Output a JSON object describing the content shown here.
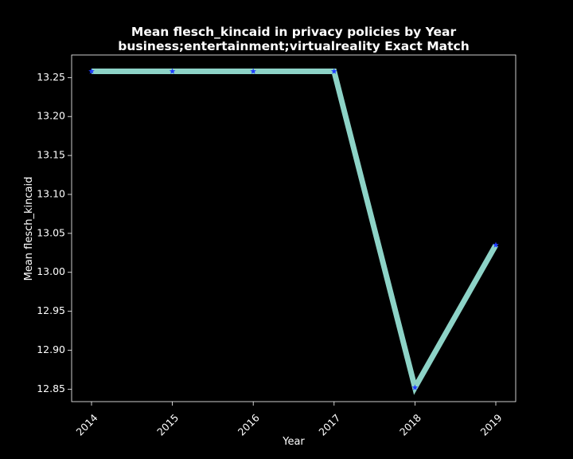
{
  "chart_data": {
    "type": "line",
    "title_line1": "Mean flesch_kincaid in privacy policies by Year",
    "title_line2": "business;entertainment;virtualreality Exact Match",
    "xlabel": "Year",
    "ylabel": "Mean flesch_kincaid",
    "x": [
      "2014",
      "2015",
      "2016",
      "2017",
      "2018",
      "2019"
    ],
    "series": [
      {
        "values": [
          13.258,
          13.258,
          13.258,
          13.258,
          12.852,
          13.035
        ]
      }
    ],
    "yticks": [
      "12.85",
      "12.90",
      "12.95",
      "13.00",
      "13.05",
      "13.10",
      "13.15",
      "13.20",
      "13.25"
    ],
    "ylim": [
      12.834,
      13.279
    ],
    "grid": false,
    "line_color": "#8dd3c7",
    "marker_color": "#1f3cff",
    "marker": "star",
    "background": "#000000",
    "foreground": "#ffffff"
  }
}
